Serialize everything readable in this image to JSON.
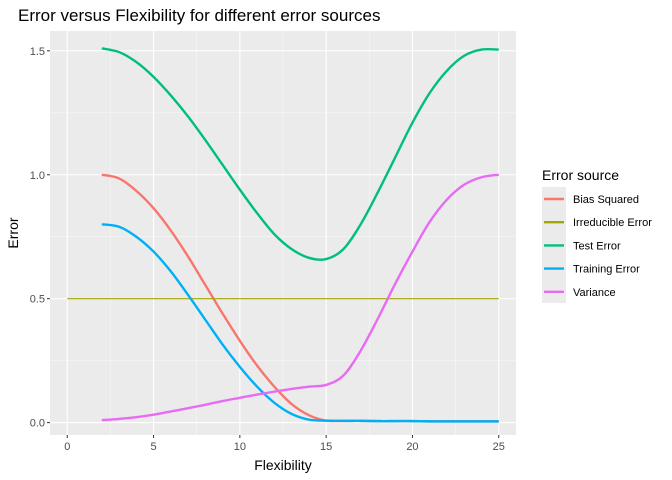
{
  "chart_data": {
    "type": "line",
    "title": "Error versus Flexibility for different error sources",
    "xlabel": "Flexibility",
    "ylabel": "Error",
    "xlim": [
      -1,
      26
    ],
    "ylim": [
      -0.05,
      1.58
    ],
    "xticks": [
      0,
      5,
      10,
      15,
      20,
      25
    ],
    "xtick_labels": [
      "0",
      "5",
      "10",
      "15",
      "20",
      "25"
    ],
    "yticks": [
      0,
      0.5,
      1.0,
      1.5
    ],
    "ytick_labels": [
      "0.0",
      "0.5",
      "1.0",
      "1.5"
    ],
    "grid": true,
    "legend": {
      "title": "Error source",
      "position": "right"
    },
    "series": [
      {
        "name": "Bias Squared",
        "color": "#F8766D",
        "x": [
          2,
          3,
          4,
          5,
          6,
          7,
          8,
          9,
          10,
          11,
          12,
          13,
          14,
          15,
          16,
          17,
          18,
          19,
          20,
          21,
          22,
          23,
          24,
          25
        ],
        "y": [
          1.0,
          0.985,
          0.935,
          0.865,
          0.775,
          0.67,
          0.555,
          0.44,
          0.33,
          0.23,
          0.145,
          0.075,
          0.03,
          0.008,
          0.007,
          0.007,
          0.006,
          0.006,
          0.006,
          0.005,
          0.005,
          0.005,
          0.005,
          0.005
        ]
      },
      {
        "name": "Irreducible Error",
        "color": "#A3A500",
        "x": [
          0,
          25
        ],
        "y": [
          0.5,
          0.5
        ]
      },
      {
        "name": "Test Error",
        "color": "#00BF7D",
        "x": [
          2,
          3,
          4,
          5,
          6,
          7,
          8,
          9,
          10,
          11,
          12,
          13,
          14,
          15,
          16,
          17,
          18,
          19,
          20,
          21,
          22,
          23,
          24,
          25
        ],
        "y": [
          1.51,
          1.495,
          1.455,
          1.395,
          1.32,
          1.235,
          1.14,
          1.04,
          0.94,
          0.845,
          0.76,
          0.7,
          0.665,
          0.66,
          0.7,
          0.8,
          0.93,
          1.07,
          1.21,
          1.33,
          1.42,
          1.48,
          1.505,
          1.505
        ]
      },
      {
        "name": "Training Error",
        "color": "#00B0F6",
        "x": [
          2,
          3,
          4,
          5,
          6,
          7,
          8,
          9,
          10,
          11,
          12,
          13,
          14,
          15,
          16,
          17,
          18,
          19,
          20,
          21,
          22,
          23,
          24,
          25
        ],
        "y": [
          0.8,
          0.79,
          0.75,
          0.69,
          0.61,
          0.515,
          0.415,
          0.315,
          0.225,
          0.145,
          0.08,
          0.035,
          0.012,
          0.008,
          0.007,
          0.007,
          0.006,
          0.006,
          0.006,
          0.005,
          0.005,
          0.005,
          0.005,
          0.005
        ]
      },
      {
        "name": "Variance",
        "color": "#E76BF3",
        "x": [
          2,
          3,
          4,
          5,
          6,
          7,
          8,
          9,
          10,
          11,
          12,
          13,
          14,
          15,
          16,
          17,
          18,
          19,
          20,
          21,
          22,
          23,
          24,
          25
        ],
        "y": [
          0.01,
          0.015,
          0.022,
          0.032,
          0.045,
          0.058,
          0.072,
          0.087,
          0.1,
          0.113,
          0.125,
          0.136,
          0.145,
          0.152,
          0.19,
          0.29,
          0.42,
          0.56,
          0.69,
          0.81,
          0.9,
          0.96,
          0.99,
          1.0
        ]
      }
    ]
  }
}
